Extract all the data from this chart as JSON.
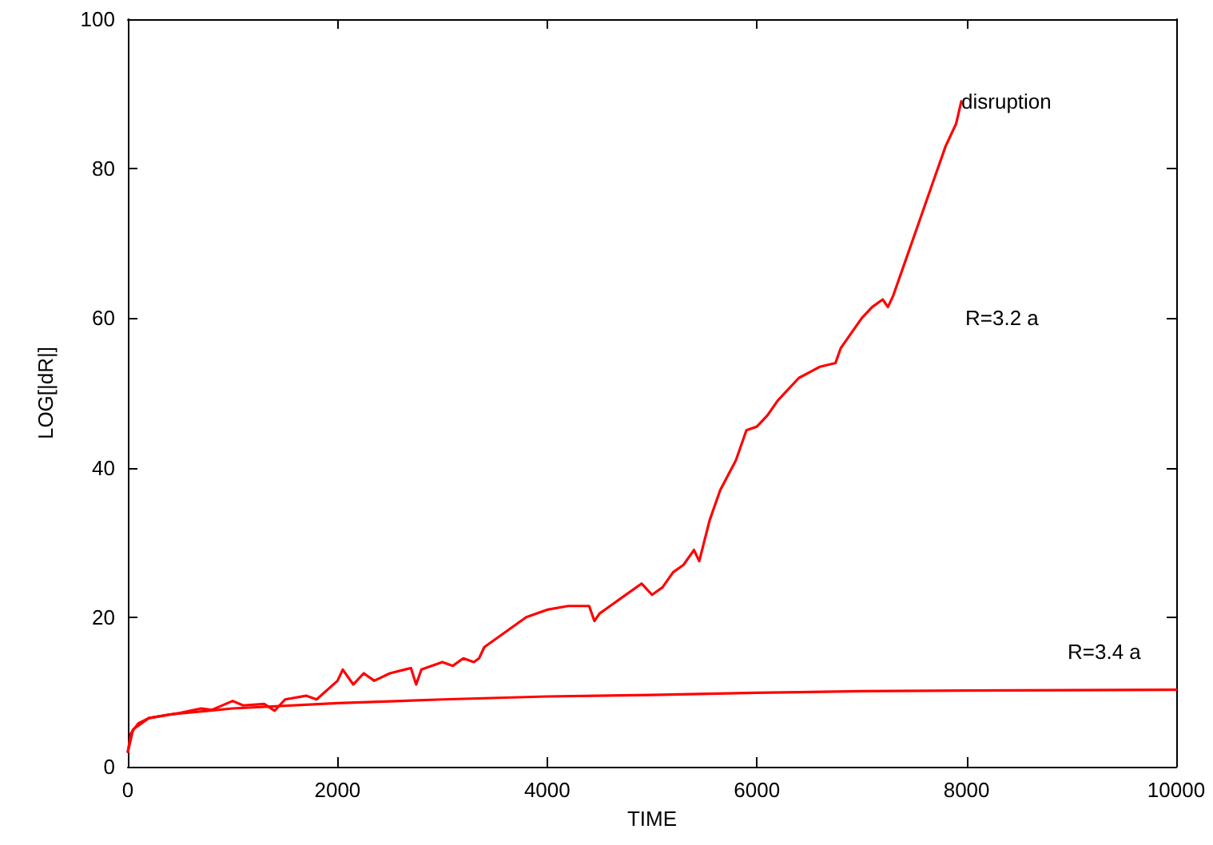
{
  "chart_data": {
    "type": "line",
    "xlabel": "TIME",
    "ylabel": "LOG[|dR|]",
    "xlim": [
      0,
      10000
    ],
    "xticks": [
      0,
      2000,
      4000,
      6000,
      8000,
      10000
    ],
    "ylim": [
      0,
      100
    ],
    "yticks": [
      0,
      20,
      40,
      60,
      80,
      100
    ],
    "grid": false,
    "marker": "none",
    "line_style": "solid",
    "series": [
      {
        "color": "#ff0000",
        "x": [
          0,
          50,
          200,
          500,
          700,
          800,
          1000,
          1100,
          1300,
          1400,
          1500,
          1700,
          1800,
          2000,
          2050,
          2150,
          2250,
          2350,
          2500,
          2700,
          2750,
          2800,
          3000,
          3100,
          3200,
          3300,
          3350,
          3400,
          3600,
          3800,
          4000,
          4200,
          4300,
          4400,
          4450,
          4500,
          4700,
          4900,
          5000,
          5100,
          5200,
          5300,
          5400,
          5450,
          5550,
          5650,
          5800,
          5900,
          6000,
          6100,
          6200,
          6400,
          6600,
          6750,
          6800,
          6900,
          7000,
          7100,
          7200,
          7250,
          7300,
          7400,
          7500,
          7600,
          7700,
          7800,
          7900,
          7950
        ],
        "values": [
          2,
          5,
          6.5,
          7.2,
          7.8,
          7.6,
          8.8,
          8.2,
          8.4,
          7.5,
          9,
          9.5,
          9,
          11.5,
          13,
          11,
          12.5,
          11.5,
          12.5,
          13.2,
          11,
          13,
          14,
          13.5,
          14.5,
          14,
          14.5,
          16,
          18,
          20,
          21,
          21.5,
          21.5,
          21.5,
          19.5,
          20.5,
          22.5,
          24.5,
          23,
          24,
          26,
          27,
          29,
          27.5,
          33,
          37,
          41,
          45,
          45.5,
          47,
          49,
          52,
          53.5,
          54,
          56,
          58,
          60,
          61.5,
          62.5,
          61.5,
          63,
          67,
          71,
          75,
          79,
          83,
          86,
          89
        ]
      },
      {
        "color": "#ff0000",
        "x": [
          0,
          30,
          100,
          200,
          400,
          1000,
          2000,
          3000,
          4000,
          5000,
          6000,
          7000,
          8000,
          10000
        ],
        "values": [
          2,
          4.5,
          5.8,
          6.5,
          7,
          7.8,
          8.5,
          9,
          9.4,
          9.6,
          9.9,
          10.1,
          10.2,
          10.3
        ]
      }
    ],
    "annotations": [
      {
        "text": "disruption",
        "x": 7950,
        "y": 89
      },
      "R=3.2 a",
      "R=3.4 a"
    ]
  }
}
